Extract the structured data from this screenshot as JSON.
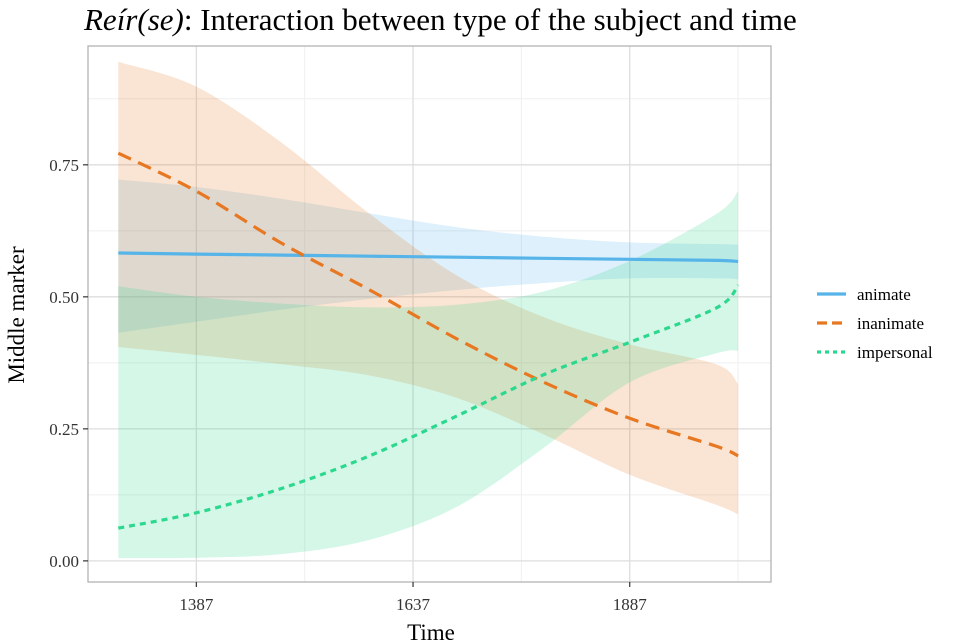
{
  "title": {
    "italic": "Reír(se)",
    "rest": ": Interaction between type of the subject and time"
  },
  "chart_data": {
    "type": "line",
    "title": "Reír(se): Interaction between type of the subject and time",
    "xlabel": "Time",
    "ylabel": "Middle marker",
    "xlim": [
      1262,
      2050
    ],
    "ylim": [
      -0.04,
      0.975
    ],
    "x_ticks": [
      1387,
      1637,
      1887
    ],
    "x_tick_labels": [
      "1387",
      "1637",
      "1887"
    ],
    "y_ticks": [
      0.0,
      0.25,
      0.5,
      0.75
    ],
    "y_tick_labels": [
      "0.00",
      "0.25",
      "0.50",
      "0.75"
    ],
    "grid": true,
    "legend_position": "right",
    "series": [
      {
        "name": "animate",
        "color": "#56B4E9",
        "line_style": "solid",
        "x": [
          1297,
          1387,
          1487,
          1587,
          1687,
          1787,
          1887,
          1987,
          2012
        ],
        "y": [
          0.583,
          0.581,
          0.579,
          0.577,
          0.575,
          0.573,
          0.571,
          0.569,
          0.567
        ],
        "lower": [
          0.432,
          0.453,
          0.476,
          0.496,
          0.513,
          0.526,
          0.535,
          0.535,
          0.533
        ],
        "upper": [
          0.722,
          0.708,
          0.685,
          0.658,
          0.632,
          0.614,
          0.603,
          0.6,
          0.599
        ]
      },
      {
        "name": "inanimate",
        "color": "#E87722",
        "line_style": "dashed",
        "x": [
          1297,
          1387,
          1487,
          1587,
          1687,
          1787,
          1887,
          1987,
          2012
        ],
        "y": [
          0.772,
          0.7,
          0.6,
          0.513,
          0.421,
          0.339,
          0.27,
          0.217,
          0.199
        ],
        "lower": [
          0.405,
          0.39,
          0.372,
          0.351,
          0.309,
          0.24,
          0.163,
          0.106,
          0.088
        ],
        "upper": [
          0.945,
          0.898,
          0.79,
          0.657,
          0.541,
          0.462,
          0.41,
          0.372,
          0.335
        ]
      },
      {
        "name": "impersonal",
        "color": "#2BD88E",
        "line_style": "dotted",
        "x": [
          1297,
          1387,
          1487,
          1587,
          1687,
          1787,
          1887,
          1987,
          2012
        ],
        "y": [
          0.062,
          0.091,
          0.138,
          0.199,
          0.274,
          0.352,
          0.414,
          0.479,
          0.522
        ],
        "lower": [
          0.005,
          0.006,
          0.013,
          0.04,
          0.102,
          0.213,
          0.338,
          0.393,
          0.398
        ],
        "upper": [
          0.52,
          0.5,
          0.487,
          0.48,
          0.485,
          0.51,
          0.568,
          0.657,
          0.7
        ]
      }
    ]
  },
  "colors": {
    "panel_border": "#b3b3b3",
    "grid_major": "#dedede",
    "grid_minor": "#efefef"
  }
}
